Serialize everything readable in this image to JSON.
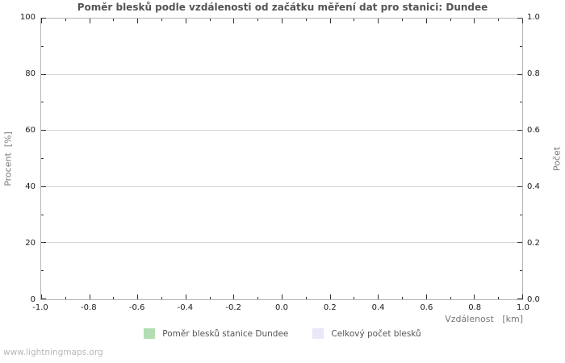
{
  "title": "Poměr blesků podle vzdálenosti od začátku měření dat pro stanici: Dundee",
  "watermark": "www.lightningmaps.org",
  "axes": {
    "left": {
      "label": "Procent  [%]",
      "ticks": [
        "0",
        "20",
        "40",
        "60",
        "80",
        "100"
      ]
    },
    "right": {
      "label": "Počet",
      "ticks": [
        "0.0",
        "0.2",
        "0.4",
        "0.6",
        "0.8",
        "1.0"
      ]
    },
    "x": {
      "label": "Vzdálenost   [km]",
      "ticks": [
        "-1.0",
        "-0.8",
        "-0.6",
        "-0.4",
        "-0.2",
        "0.0",
        "0.2",
        "0.4",
        "0.6",
        "0.8",
        "1.0"
      ]
    }
  },
  "legend": [
    {
      "label": "Poměr blesků stanice Dundee",
      "color": "#b3deb3"
    },
    {
      "label": "Celkový počet blesků",
      "color": "#e8e8f8"
    }
  ],
  "colors": {
    "plot_border": "#b5b5b5",
    "gridline": "#d6d6d6",
    "tick_mark": "#333333",
    "tick_label": "#1a1a1a",
    "title_text": "#555555",
    "axis_label_text": "#777777",
    "legend_text": "#555555",
    "watermark_text": "#b8b8b8",
    "series_ratio": "#b3deb3",
    "series_total": "#e8e8f8"
  },
  "chart_data": {
    "type": "bar",
    "title": "Poměr blesků podle vzdálenosti od začátku měření dat pro stanici: Dundee",
    "xlabel": "Vzdálenost [km]",
    "ylabel_left": "Procent [%]",
    "ylabel_right": "Počet",
    "xlim": [
      -1.0,
      1.0
    ],
    "ylim_left": [
      0,
      100
    ],
    "ylim_right": [
      0.0,
      1.0
    ],
    "x_ticks": [
      -1.0,
      -0.8,
      -0.6,
      -0.4,
      -0.2,
      0.0,
      0.2,
      0.4,
      0.6,
      0.8,
      1.0
    ],
    "y_ticks_left": [
      0,
      20,
      40,
      60,
      80,
      100
    ],
    "y_ticks_right": [
      0.0,
      0.2,
      0.4,
      0.6,
      0.8,
      1.0
    ],
    "x": [],
    "series": [
      {
        "name": "Poměr blesků stanice Dundee",
        "axis": "left",
        "values": []
      },
      {
        "name": "Celkový počet blesků",
        "axis": "right",
        "values": []
      }
    ],
    "grid": "horizontal-only",
    "legend_position": "bottom-center",
    "note": "empty plot - no data points rendered"
  }
}
